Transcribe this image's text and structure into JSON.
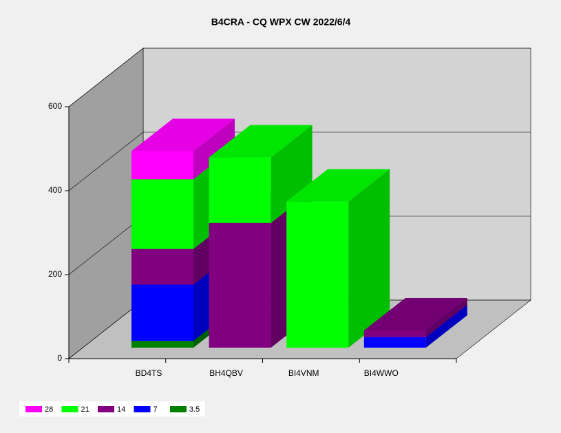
{
  "chart_data": {
    "type": "bar3d_stacked",
    "title": "B4CRA - CQ WPX  CW 2022/6/4",
    "categories": [
      "BD4TS",
      "BH4QBV",
      "BI4VNM",
      "BI4WWO"
    ],
    "series": [
      {
        "name": "28",
        "color": "#ff00ff",
        "values": [
          67,
          0,
          0,
          0
        ]
      },
      {
        "name": "21",
        "color": "#00ff00",
        "values": [
          166,
          156,
          348,
          0
        ]
      },
      {
        "name": "14",
        "color": "#800080",
        "values": [
          85,
          297,
          0,
          16
        ]
      },
      {
        "name": "7",
        "color": "#0000ff",
        "values": [
          134,
          0,
          0,
          25
        ]
      },
      {
        "name": "3.5",
        "color": "#008000",
        "values": [
          16,
          0,
          0,
          0
        ]
      }
    ],
    "ylim": [
      0,
      600
    ],
    "yticks": [
      0,
      200,
      400,
      600
    ],
    "grid": true,
    "legend": "bottom-left"
  }
}
